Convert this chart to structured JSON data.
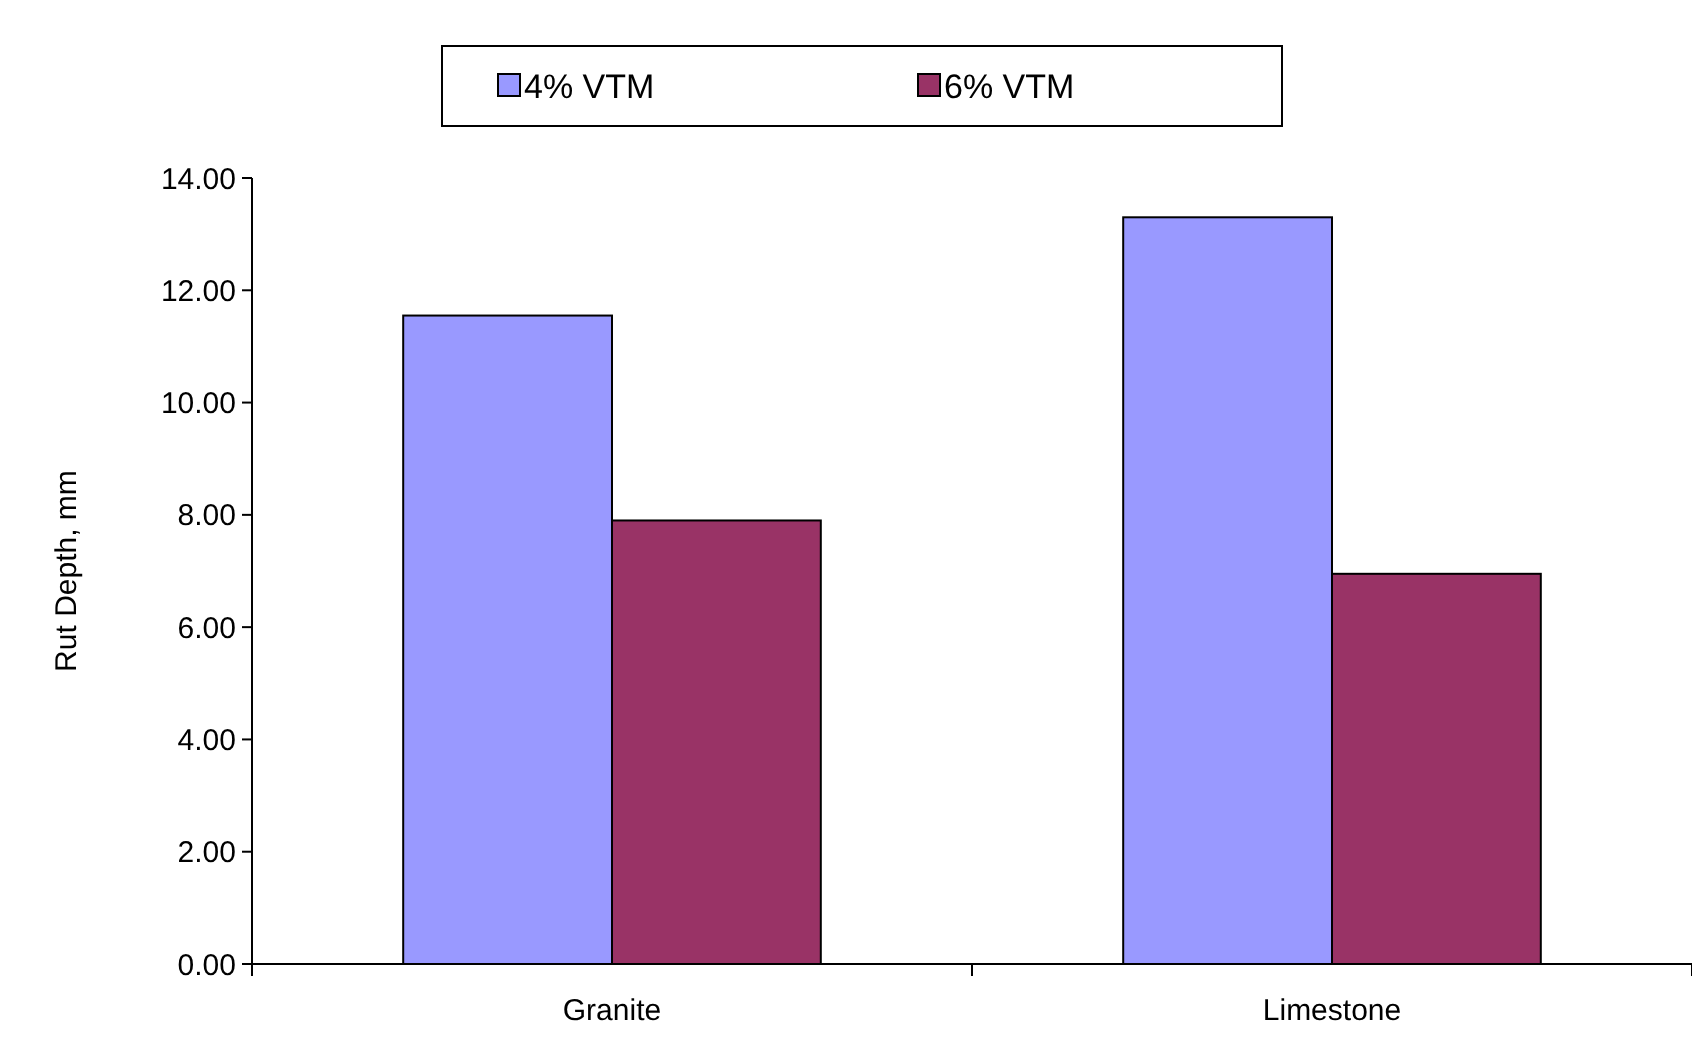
{
  "chart_data": {
    "type": "bar",
    "ylabel": "Rut Depth, mm",
    "categories": [
      "Granite",
      "Limestone"
    ],
    "series": [
      {
        "name": "4% VTM",
        "color": "#9999ff",
        "values": [
          11.55,
          13.3
        ]
      },
      {
        "name": "6% VTM",
        "color": "#993366",
        "values": [
          7.9,
          6.95
        ]
      }
    ],
    "ylim": [
      0,
      14
    ],
    "yticks": [
      {
        "value": 0,
        "label": "0.00"
      },
      {
        "value": 2,
        "label": "2.00"
      },
      {
        "value": 4,
        "label": "4.00"
      },
      {
        "value": 6,
        "label": "6.00"
      },
      {
        "value": 8,
        "label": "8.00"
      },
      {
        "value": 10,
        "label": "10.00"
      },
      {
        "value": 12,
        "label": "12.00"
      },
      {
        "value": 14,
        "label": "14.00"
      }
    ],
    "grid": false,
    "legend": "top"
  }
}
